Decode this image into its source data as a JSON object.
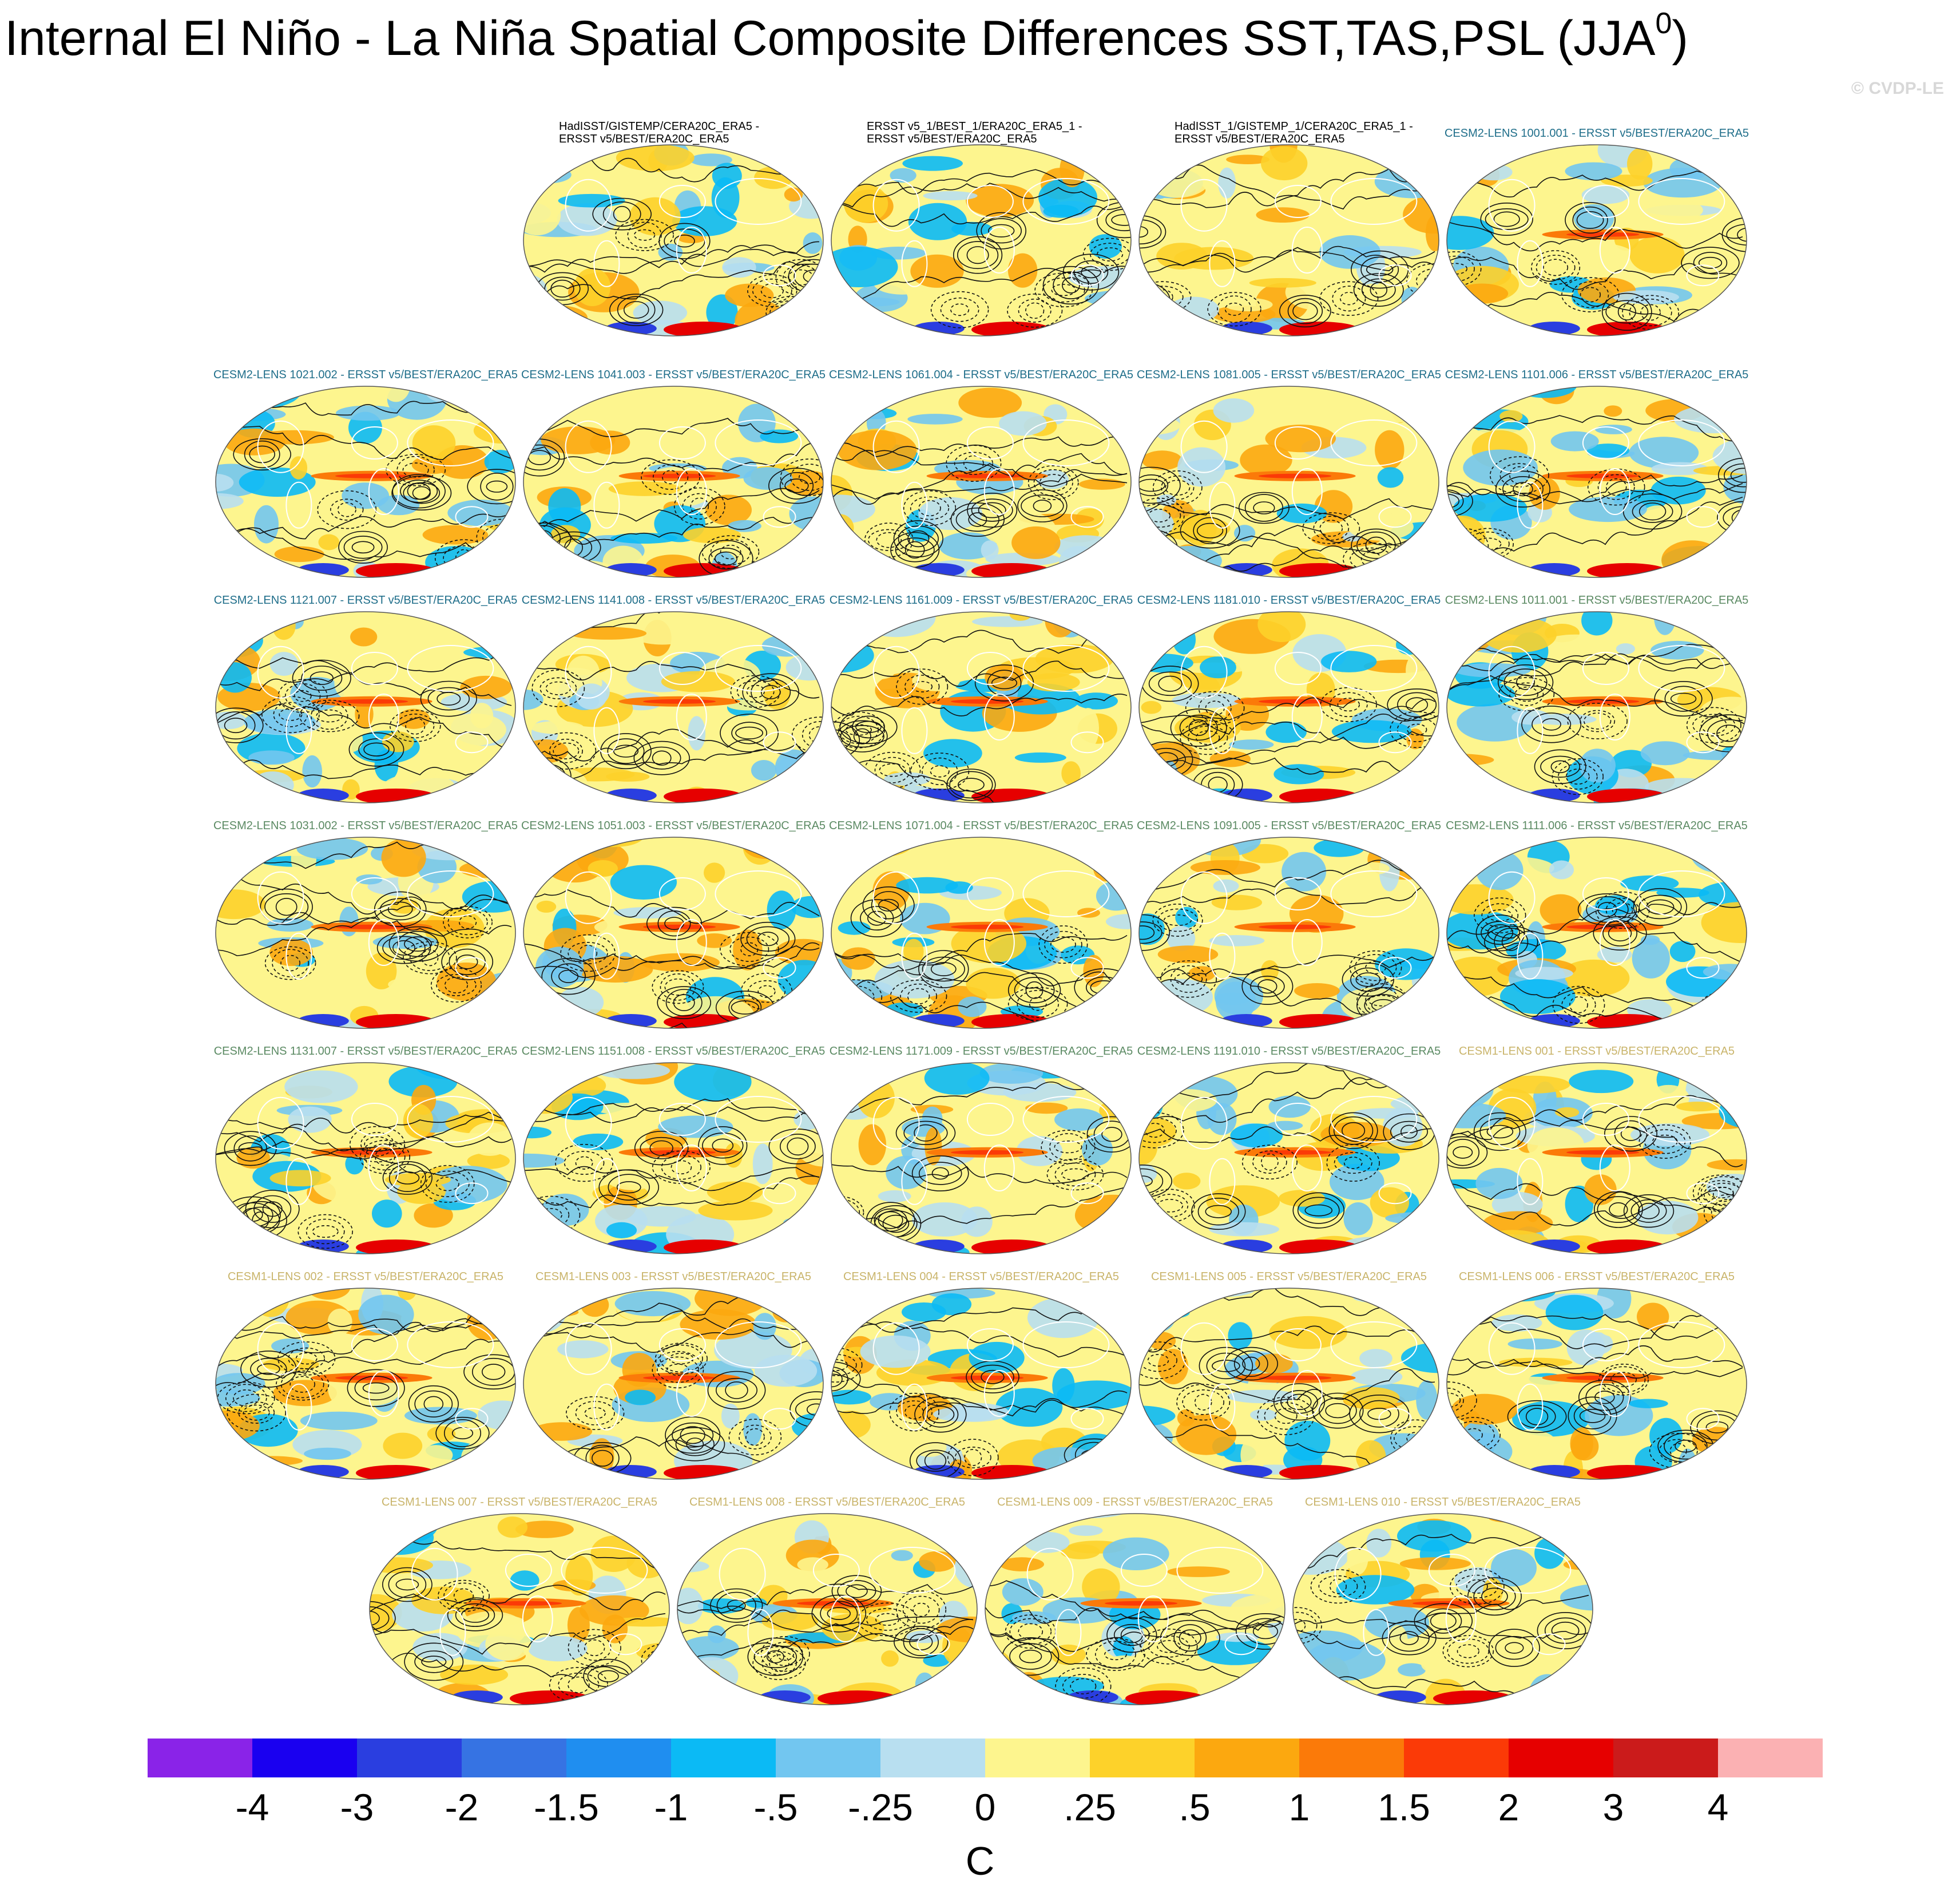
{
  "chart_data": {
    "type": "heatmap",
    "title": "Internal El Niño - La Niña Spatial Composite Differences SST,TAS,PSL (JJA",
    "title_superscript": "0",
    "title_close": ")",
    "watermark": "© CVDP-LE",
    "colorbar": {
      "unit": "C",
      "ticks": [
        "-4",
        "-3",
        "-2",
        "-1.5",
        "-1",
        "-.5",
        "-.25",
        "0",
        ".25",
        ".5",
        "1",
        "1.5",
        "2",
        "3",
        "4"
      ],
      "colors": [
        "#8a23e8",
        "#1a00f0",
        "#2a3ee0",
        "#3673e3",
        "#1f8ef0",
        "#0bbaf5",
        "#72c6f0",
        "#b8dff0",
        "#fdf58e",
        "#fdd22a",
        "#fca80f",
        "#fb7a09",
        "#fb3a07",
        "#e60000",
        "#cb1b1b",
        "#fbb1b3"
      ]
    },
    "panels": [
      {
        "title": "HadISST/GISTEMP/CERA20C_ERA5 -",
        "title2": "ERSST v5/BEST/ERA20C_ERA5",
        "color": "#000000"
      },
      {
        "title": "ERSST v5_1/BEST_1/ERA20C_ERA5_1 -",
        "title2": "ERSST v5/BEST/ERA20C_ERA5",
        "color": "#000000"
      },
      {
        "title": "HadISST_1/GISTEMP_1/CERA20C_ERA5_1 -",
        "title2": "ERSST v5/BEST/ERA20C_ERA5",
        "color": "#000000"
      },
      {
        "title": "CESM2-LENS 1001.001 - ERSST v5/BEST/ERA20C_ERA5",
        "color": "#1f6e8a"
      },
      {
        "title": "CESM2-LENS 1021.002 - ERSST v5/BEST/ERA20C_ERA5",
        "color": "#1f6e8a"
      },
      {
        "title": "CESM2-LENS 1041.003 - ERSST v5/BEST/ERA20C_ERA5",
        "color": "#1f6e8a"
      },
      {
        "title": "CESM2-LENS 1061.004 - ERSST v5/BEST/ERA20C_ERA5",
        "color": "#1f6e8a"
      },
      {
        "title": "CESM2-LENS 1081.005 - ERSST v5/BEST/ERA20C_ERA5",
        "color": "#1f6e8a"
      },
      {
        "title": "CESM2-LENS 1101.006 - ERSST v5/BEST/ERA20C_ERA5",
        "color": "#1f6e8a"
      },
      {
        "title": "CESM2-LENS 1121.007 - ERSST v5/BEST/ERA20C_ERA5",
        "color": "#1f6e8a"
      },
      {
        "title": "CESM2-LENS 1141.008 - ERSST v5/BEST/ERA20C_ERA5",
        "color": "#1f6e8a"
      },
      {
        "title": "CESM2-LENS 1161.009 - ERSST v5/BEST/ERA20C_ERA5",
        "color": "#1f6e8a"
      },
      {
        "title": "CESM2-LENS 1181.010 - ERSST v5/BEST/ERA20C_ERA5",
        "color": "#1f6e8a"
      },
      {
        "title": "CESM2-LENS 1011.001 - ERSST v5/BEST/ERA20C_ERA5",
        "color": "#5b8a63"
      },
      {
        "title": "CESM2-LENS 1031.002 - ERSST v5/BEST/ERA20C_ERA5",
        "color": "#5b8a63"
      },
      {
        "title": "CESM2-LENS 1051.003 - ERSST v5/BEST/ERA20C_ERA5",
        "color": "#5b8a63"
      },
      {
        "title": "CESM2-LENS 1071.004 - ERSST v5/BEST/ERA20C_ERA5",
        "color": "#5b8a63"
      },
      {
        "title": "CESM2-LENS 1091.005 - ERSST v5/BEST/ERA20C_ERA5",
        "color": "#5b8a63"
      },
      {
        "title": "CESM2-LENS 1111.006 - ERSST v5/BEST/ERA20C_ERA5",
        "color": "#5b8a63"
      },
      {
        "title": "CESM2-LENS 1131.007 - ERSST v5/BEST/ERA20C_ERA5",
        "color": "#5b8a63"
      },
      {
        "title": "CESM2-LENS 1151.008 - ERSST v5/BEST/ERA20C_ERA5",
        "color": "#5b8a63"
      },
      {
        "title": "CESM2-LENS 1171.009 - ERSST v5/BEST/ERA20C_ERA5",
        "color": "#5b8a63"
      },
      {
        "title": "CESM2-LENS 1191.010 - ERSST v5/BEST/ERA20C_ERA5",
        "color": "#5b8a63"
      },
      {
        "title": "CESM1-LENS 001 - ERSST v5/BEST/ERA20C_ERA5",
        "color": "#c9b46a"
      },
      {
        "title": "CESM1-LENS 002 - ERSST v5/BEST/ERA20C_ERA5",
        "color": "#c9b46a"
      },
      {
        "title": "CESM1-LENS 003 - ERSST v5/BEST/ERA20C_ERA5",
        "color": "#c9b46a"
      },
      {
        "title": "CESM1-LENS 004 - ERSST v5/BEST/ERA20C_ERA5",
        "color": "#c9b46a"
      },
      {
        "title": "CESM1-LENS 005 - ERSST v5/BEST/ERA20C_ERA5",
        "color": "#c9b46a"
      },
      {
        "title": "CESM1-LENS 006 - ERSST v5/BEST/ERA20C_ERA5",
        "color": "#c9b46a"
      },
      {
        "title": "CESM1-LENS 007 - ERSST v5/BEST/ERA20C_ERA5",
        "color": "#c9b46a"
      },
      {
        "title": "CESM1-LENS 008 - ERSST v5/BEST/ERA20C_ERA5",
        "color": "#c9b46a"
      },
      {
        "title": "CESM1-LENS 009 - ERSST v5/BEST/ERA20C_ERA5",
        "color": "#c9b46a"
      },
      {
        "title": "CESM1-LENS 010 - ERSST v5/BEST/ERA20C_ERA5",
        "color": "#c9b46a"
      }
    ]
  }
}
